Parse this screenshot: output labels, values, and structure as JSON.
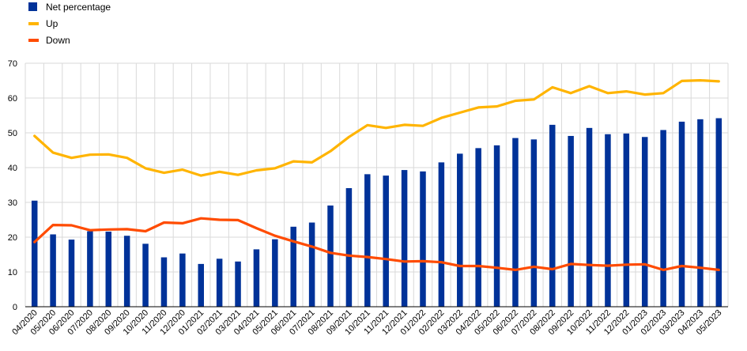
{
  "chart_data": {
    "type": "bar",
    "title": "",
    "xlabel": "",
    "ylabel": "",
    "ylim": [
      0,
      70
    ],
    "yticks": [
      0,
      10,
      20,
      30,
      40,
      50,
      60,
      70
    ],
    "grid": true,
    "legend_position": "top-left",
    "categories": [
      "04/2020",
      "05/2020",
      "06/2020",
      "07/2020",
      "08/2020",
      "09/2020",
      "10/2020",
      "11/2020",
      "12/2020",
      "01/2021",
      "02/2021",
      "03/2021",
      "04/2021",
      "05/2021",
      "06/2021",
      "07/2021",
      "08/2021",
      "09/2021",
      "10/2021",
      "11/2021",
      "12/2021",
      "01/2022",
      "02/2022",
      "03/2022",
      "04/2022",
      "05/2022",
      "06/2022",
      "07/2022",
      "08/2022",
      "09/2022",
      "10/2022",
      "11/2022",
      "12/2022",
      "01/2023",
      "02/2023",
      "03/2023",
      "04/2023",
      "05/2023"
    ],
    "series": [
      {
        "name": "Net percentage",
        "type": "bar",
        "color": "#003299",
        "values": [
          30.5,
          20.8,
          19.3,
          21.7,
          21.6,
          20.4,
          18.1,
          14.2,
          15.3,
          12.3,
          13.8,
          13.0,
          16.5,
          19.4,
          23.0,
          24.2,
          29.1,
          34.1,
          38.1,
          37.7,
          39.3,
          38.9,
          41.5,
          44.0,
          45.6,
          46.4,
          48.5,
          48.1,
          52.3,
          49.1,
          51.4,
          49.6,
          49.8,
          48.8,
          50.8,
          53.2,
          53.9,
          54.2
        ]
      },
      {
        "name": "Up",
        "type": "line",
        "color": "#FFB400",
        "values": [
          49.1,
          44.3,
          42.8,
          43.7,
          43.8,
          42.8,
          39.8,
          38.5,
          39.4,
          37.7,
          38.8,
          37.9,
          39.2,
          39.8,
          41.8,
          41.5,
          44.7,
          48.8,
          52.2,
          51.4,
          52.3,
          52.0,
          54.3,
          55.8,
          57.3,
          57.6,
          59.2,
          59.6,
          63.1,
          61.4,
          63.4,
          61.4,
          61.9,
          61.0,
          61.4,
          64.9,
          65.1,
          64.8
        ]
      },
      {
        "name": "Down",
        "type": "line",
        "color": "#FF4B00",
        "values": [
          18.6,
          23.5,
          23.4,
          22.0,
          22.2,
          22.3,
          21.7,
          24.2,
          24.0,
          25.4,
          25.0,
          24.9,
          22.6,
          20.4,
          18.8,
          17.3,
          15.5,
          14.7,
          14.3,
          13.7,
          13.0,
          13.1,
          12.8,
          11.7,
          11.7,
          11.2,
          10.6,
          11.5,
          10.8,
          12.3,
          12.0,
          11.8,
          12.1,
          12.2,
          10.6,
          11.7,
          11.2,
          10.6
        ]
      }
    ]
  }
}
